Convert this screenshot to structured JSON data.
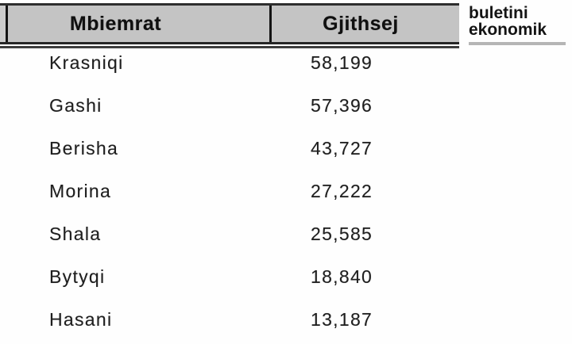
{
  "chart_data": {
    "type": "table",
    "columns": [
      "Mbiemrat",
      "Gjithsej"
    ],
    "rows": [
      {
        "mbiemrat": "Krasniqi",
        "gjithsej": "58,199",
        "value": 58199
      },
      {
        "mbiemrat": "Gashi",
        "gjithsej": "57,396",
        "value": 57396
      },
      {
        "mbiemrat": "Berisha",
        "gjithsej": "43,727",
        "value": 43727
      },
      {
        "mbiemrat": "Morina",
        "gjithsej": "27,222",
        "value": 27222
      },
      {
        "mbiemrat": "Shala",
        "gjithsej": "25,585",
        "value": 25585
      },
      {
        "mbiemrat": "Bytyqi",
        "gjithsej": "18,840",
        "value": 18840
      },
      {
        "mbiemrat": "Hasani",
        "gjithsej": "13,187",
        "value": 13187
      }
    ],
    "layout": {
      "header_background": "#c4c4c4",
      "border_color": "#2e2e2e",
      "text_color": "#1f1f1f",
      "grid": "header-only"
    }
  },
  "logo": {
    "line1": "buletini",
    "line2": "ekonomik",
    "underline_color": "#b5b5b5"
  }
}
